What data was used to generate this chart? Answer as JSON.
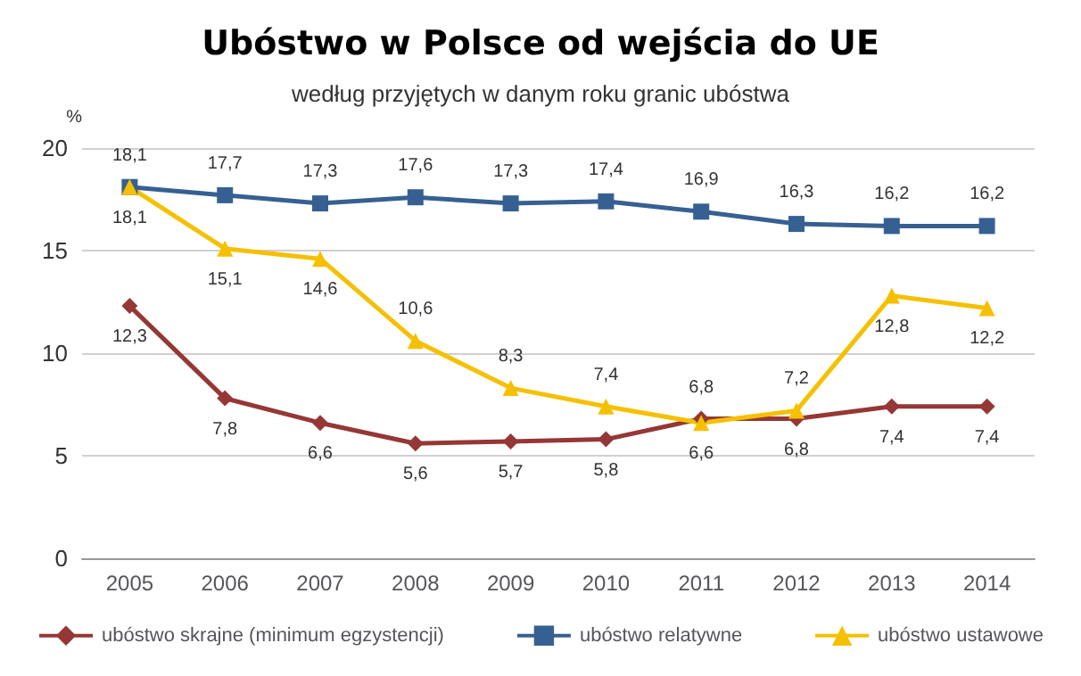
{
  "chart_data": {
    "type": "line",
    "title": "Ubóstwo w Polsce od wejścia do UE",
    "subtitle": "według przyjętych w danym roku granic ubóstwa",
    "ylabel": "%",
    "categories": [
      "2005",
      "2006",
      "2007",
      "2008",
      "2009",
      "2010",
      "2011",
      "2012",
      "2013",
      "2014"
    ],
    "series": [
      {
        "name": "ubóstwo skrajne (minimum egzystencji)",
        "color": "#953735",
        "marker": "diamond",
        "values": [
          12.3,
          7.8,
          6.6,
          5.6,
          5.7,
          5.8,
          6.8,
          6.8,
          7.4,
          7.4
        ],
        "value_labels": [
          "12,3",
          "7,8",
          "6,6",
          "5,6",
          "5,7",
          "5,8",
          "6,8",
          "6,8",
          "7,4",
          "7,4"
        ]
      },
      {
        "name": "ubóstwo relatywne",
        "color": "#376092",
        "marker": "square",
        "values": [
          18.1,
          17.7,
          17.3,
          17.6,
          17.3,
          17.4,
          16.9,
          16.3,
          16.2,
          16.2
        ],
        "value_labels": [
          "18,1",
          "17,7",
          "17,3",
          "17,6",
          "17,3",
          "17,4",
          "16,9",
          "16,3",
          "16,2",
          "16,2"
        ]
      },
      {
        "name": "ubóstwo ustawowe",
        "color": "#f5c000",
        "marker": "triangle",
        "values": [
          18.1,
          15.1,
          14.6,
          10.6,
          8.3,
          7.4,
          6.6,
          7.2,
          12.8,
          12.2
        ],
        "value_labels": [
          "18,1",
          "15,1",
          "14,6",
          "10,6",
          "8,3",
          "7,4",
          "6,6",
          "7,2",
          "12,8",
          "12,2"
        ]
      }
    ],
    "ylim": [
      0,
      20
    ],
    "yticks": [
      0,
      5,
      10,
      15,
      20
    ],
    "grid": "y",
    "legend": "bottom"
  }
}
